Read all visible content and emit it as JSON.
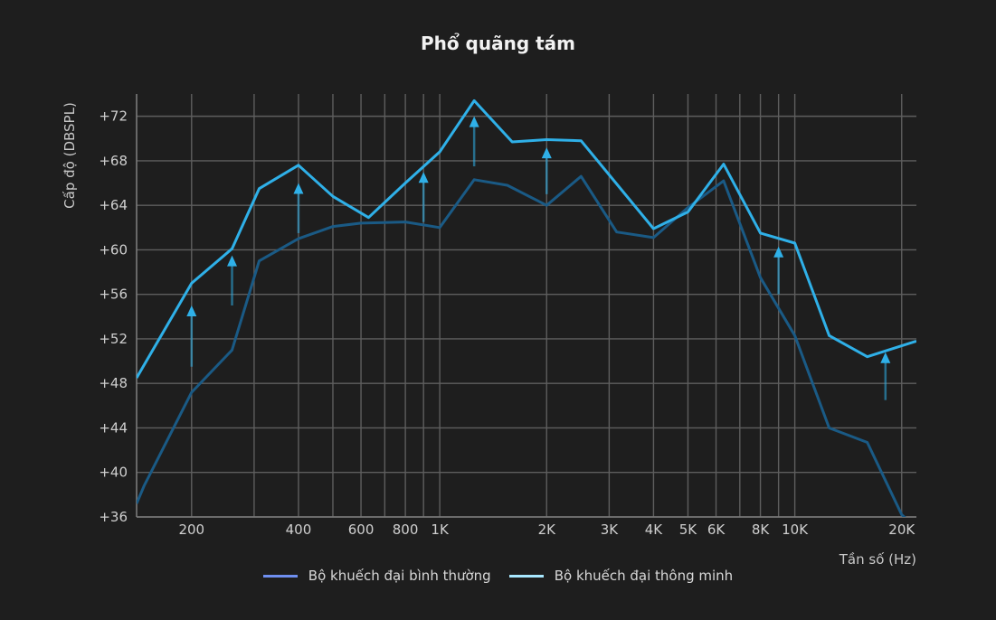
{
  "chart_data": {
    "type": "line",
    "title": "Phổ quãng tám",
    "xlabel": "Tần số (Hz)",
    "ylabel": "Cấp độ (DBSPL)",
    "x_scale": "log",
    "xlim": [
      140,
      22000
    ],
    "ylim": [
      36,
      74
    ],
    "grid": true,
    "x_ticks": [
      {
        "value": 200,
        "label": "200"
      },
      {
        "value": 400,
        "label": "400"
      },
      {
        "value": 600,
        "label": "600"
      },
      {
        "value": 800,
        "label": "800"
      },
      {
        "value": 1000,
        "label": "1K"
      },
      {
        "value": 2000,
        "label": "2K"
      },
      {
        "value": 3000,
        "label": "3K"
      },
      {
        "value": 4000,
        "label": "4K"
      },
      {
        "value": 5000,
        "label": "5K"
      },
      {
        "value": 6000,
        "label": "6K"
      },
      {
        "value": 8000,
        "label": "8K"
      },
      {
        "value": 10000,
        "label": "10K"
      },
      {
        "value": 20000,
        "label": "20K"
      }
    ],
    "x_minor_gridlines": [
      300,
      500,
      700,
      900,
      7000,
      9000
    ],
    "y_ticks": [
      {
        "value": 36,
        "label": "+36"
      },
      {
        "value": 40,
        "label": "+40"
      },
      {
        "value": 44,
        "label": "+44"
      },
      {
        "value": 48,
        "label": "+48"
      },
      {
        "value": 52,
        "label": "+52"
      },
      {
        "value": 56,
        "label": "+56"
      },
      {
        "value": 60,
        "label": "+60"
      },
      {
        "value": 64,
        "label": "+64"
      },
      {
        "value": 68,
        "label": "+68"
      },
      {
        "value": 72,
        "label": "+72"
      }
    ],
    "series": [
      {
        "name": "Bộ khuếch đại bình thường",
        "color": "#1a5a85",
        "legend_color": "#6f8ff0",
        "points": [
          [
            140,
            37.2
          ],
          [
            147,
            38.8
          ],
          [
            200,
            47.2
          ],
          [
            260,
            51.0
          ],
          [
            310,
            59.0
          ],
          [
            400,
            61.0
          ],
          [
            500,
            62.1
          ],
          [
            600,
            62.4
          ],
          [
            800,
            62.5
          ],
          [
            1000,
            62.0
          ],
          [
            1250,
            66.3
          ],
          [
            1550,
            65.8
          ],
          [
            2000,
            64.0
          ],
          [
            2500,
            66.6
          ],
          [
            3150,
            61.6
          ],
          [
            4000,
            61.1
          ],
          [
            5000,
            63.8
          ],
          [
            6300,
            66.2
          ],
          [
            8000,
            57.5
          ],
          [
            10000,
            52.3
          ],
          [
            12500,
            44.0
          ],
          [
            16000,
            42.7
          ],
          [
            20000,
            36.2
          ],
          [
            22000,
            35.0
          ]
        ]
      },
      {
        "name": "Bộ khuếch đại thông minh",
        "color": "#2fb0e8",
        "legend_color": "#a8e8ff",
        "points": [
          [
            140,
            48.5
          ],
          [
            200,
            57.0
          ],
          [
            260,
            60.1
          ],
          [
            310,
            65.5
          ],
          [
            400,
            67.6
          ],
          [
            500,
            64.8
          ],
          [
            630,
            62.9
          ],
          [
            800,
            66.0
          ],
          [
            1000,
            68.8
          ],
          [
            1250,
            73.4
          ],
          [
            1600,
            69.7
          ],
          [
            2000,
            69.9
          ],
          [
            2500,
            69.8
          ],
          [
            4000,
            61.9
          ],
          [
            5000,
            63.4
          ],
          [
            6300,
            67.7
          ],
          [
            8000,
            61.5
          ],
          [
            10000,
            60.6
          ],
          [
            12500,
            52.3
          ],
          [
            16000,
            50.4
          ],
          [
            22000,
            51.8
          ]
        ]
      }
    ],
    "annotations": {
      "type": "upward-arrows",
      "color": "#2fb0e8",
      "arrows": [
        {
          "x": 200,
          "from": 49.5,
          "to": 55.0
        },
        {
          "x": 260,
          "from": 55.0,
          "to": 59.5
        },
        {
          "x": 400,
          "from": 61.5,
          "to": 66.0
        },
        {
          "x": 900,
          "from": 62.5,
          "to": 67.0
        },
        {
          "x": 1250,
          "from": 67.5,
          "to": 72.0
        },
        {
          "x": 2000,
          "from": 65.0,
          "to": 69.2
        },
        {
          "x": 9000,
          "from": 56.0,
          "to": 60.3
        },
        {
          "x": 18000,
          "from": 46.5,
          "to": 50.8
        }
      ]
    }
  },
  "legend": [
    {
      "label": "Bộ khuếch đại bình thường",
      "color": "#6f8ff0"
    },
    {
      "label": "Bộ khuếch đại thông minh",
      "color": "#a8e8ff"
    }
  ]
}
